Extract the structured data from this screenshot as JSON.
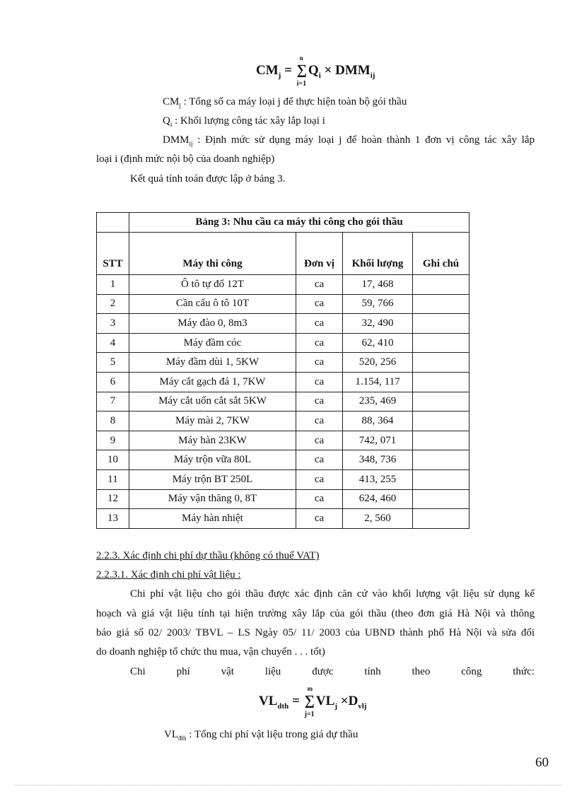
{
  "formula1": {
    "lhs": "CM",
    "lhs_sub": "j",
    "sum_top": "n",
    "sum_bottom": "i=1",
    "term1": "Q",
    "term1_sub": "i",
    "op": "×",
    "term2": "DMM",
    "term2_sub": "ij"
  },
  "defs1": [
    {
      "sym": "CM",
      "sub": "j",
      "text": ": Tổng số ca máy loại j để thực hiện toàn bộ gói thầu"
    },
    {
      "sym": "Q",
      "sub": "i",
      "text": ": Khối lượng công tác xây lắp loại i"
    },
    {
      "sym": "DMM",
      "sub": "ij",
      "text": ": Định mức sử dụng máy loại j để hoàn thành 1 đơn vị công tác xây lắp"
    }
  ],
  "defs1_cont": "loại i (định mức nội bộ của doanh nghiệp)",
  "result_line": "Kết quả tính toán được lập ở bảng 3.",
  "table": {
    "title": "Bảng 3: Nhu cầu ca máy thi công cho gói thầu",
    "headers": [
      "STT",
      "Máy thi công",
      "Đơn vị",
      "Khối lượng",
      "Ghi chú"
    ],
    "rows": [
      [
        "1",
        "Ô tô tự đổ 12T",
        "ca",
        "17, 468",
        ""
      ],
      [
        "2",
        "Cần cẩu ô tô 10T",
        "ca",
        "59, 766",
        ""
      ],
      [
        "3",
        "Máy đào 0, 8m3",
        "ca",
        "32, 490",
        ""
      ],
      [
        "4",
        "Máy đầm cóc",
        "ca",
        "62, 410",
        ""
      ],
      [
        "5",
        "Máy đầm dùi 1, 5KW",
        "ca",
        "520, 256",
        ""
      ],
      [
        "6",
        "Máy cắt gạch đá 1, 7KW",
        "ca",
        "1.154, 117",
        ""
      ],
      [
        "7",
        "Máy cắt uốn cắt sắt 5KW",
        "ca",
        "235, 469",
        ""
      ],
      [
        "8",
        "Máy mài 2, 7KW",
        "ca",
        "88, 364",
        ""
      ],
      [
        "9",
        "Máy hàn 23KW",
        "ca",
        "742, 071",
        ""
      ],
      [
        "10",
        "Máy trộn vữa 80L",
        "ca",
        "348, 736",
        ""
      ],
      [
        "11",
        "Máy trộn BT 250L",
        "ca",
        "413, 255",
        ""
      ],
      [
        "12",
        "Máy vận thăng 0, 8T",
        "ca",
        "624, 460",
        ""
      ],
      [
        "13",
        "Máy hàn nhiệt",
        "ca",
        "2, 560",
        ""
      ]
    ]
  },
  "heading1": "2.2.3. Xác định chi phí dự thầu (không có thuế VAT)",
  "heading2": "2.2.3.1. Xác định chi phí vật liệu :",
  "para": [
    "Chi phí vật liệu cho gói thầu được xác định căn cứ vào khối lượng vật liệu sử dụng kế",
    "hoạch và giá vật liệu tính tại hiện trường xây lắp của gói thầu (theo đơn giá Hà Nội và thông",
    "báo giá số 02/ 2003/ TBVL – LS Ngày 05/ 11/ 2003 của UBND thành phố Hà Nội và sửa đổi",
    "do doanh nghiệp tổ chức thu mua, vận chuyển . . . tốt)"
  ],
  "formula_intro": "Chi phí vật liệu được tính theo công thức:",
  "formula2": {
    "lhs": "VL",
    "lhs_sub": "dth",
    "sum_top": "m",
    "sum_bottom": "j=1",
    "term1": "VL",
    "term1_sub": "j",
    "op": "×",
    "term2": "D",
    "term2_sub": "vlj"
  },
  "def2": {
    "sym": "VL",
    "sub": "đth",
    "text": ": Tổng chi phí vật liệu trong giá dự thầu"
  },
  "page_number": "60"
}
